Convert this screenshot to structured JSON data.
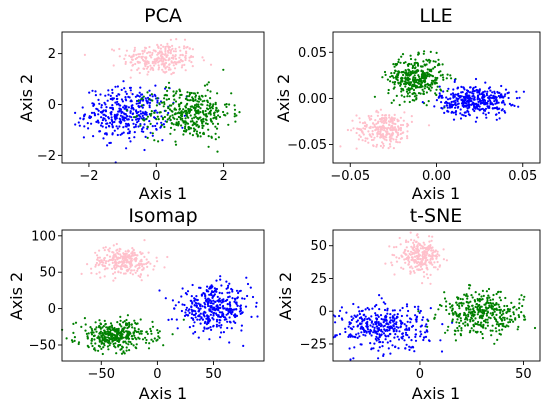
{
  "colors": {
    "class_a": "#0000ff",
    "class_b": "#008000",
    "class_c": "#ffc0cb"
  },
  "chart_data": [
    {
      "type": "scatter",
      "title": "PCA",
      "xlabel": "Axis 1",
      "ylabel": "Axis 2",
      "xlim": [
        -2.8,
        3.2
      ],
      "ylim": [
        -2.3,
        2.85
      ],
      "xticks": [
        -2,
        0,
        2
      ],
      "yticks": [
        -2,
        0,
        2
      ],
      "xtick_labels": [
        "−2",
        "0",
        "2"
      ],
      "ytick_labels": [
        "−2",
        "0",
        "2"
      ],
      "grid": false,
      "clusters": [
        {
          "color": "class_c",
          "center": [
            0.1,
            1.8
          ],
          "spread": [
            0.55,
            0.32
          ],
          "n": 260
        },
        {
          "color": "class_a",
          "center": [
            -0.9,
            -0.35
          ],
          "spread": [
            0.6,
            0.5
          ],
          "n": 380
        },
        {
          "color": "class_b",
          "center": [
            1.0,
            -0.35
          ],
          "spread": [
            0.6,
            0.5
          ],
          "n": 380
        }
      ]
    },
    {
      "type": "scatter",
      "title": "LLE",
      "xlabel": "Axis 1",
      "ylabel": "Axis 2",
      "xlim": [
        -0.06,
        0.06
      ],
      "ylim": [
        -0.07,
        0.072
      ],
      "xticks": [
        -0.05,
        0.0,
        0.05
      ],
      "yticks": [
        -0.05,
        0.0,
        0.05
      ],
      "xtick_labels": [
        "−0.05",
        "0.00",
        "0.05"
      ],
      "ytick_labels": [
        "−0.05",
        "0.00",
        "0.05"
      ],
      "grid": false,
      "clusters": [
        {
          "color": "class_c",
          "center": [
            -0.03,
            -0.033
          ],
          "spread": [
            0.008,
            0.009
          ],
          "n": 260
        },
        {
          "color": "class_b",
          "center": [
            -0.012,
            0.022
          ],
          "spread": [
            0.008,
            0.011
          ],
          "n": 380
        },
        {
          "color": "class_a",
          "center": [
            0.022,
            -0.002
          ],
          "spread": [
            0.01,
            0.008
          ],
          "n": 380
        }
      ]
    },
    {
      "type": "scatter",
      "title": "Isomap",
      "xlabel": "Axis 1",
      "ylabel": "Axis 2",
      "xlim": [
        -85,
        95
      ],
      "ylim": [
        -72,
        108
      ],
      "xticks": [
        -50,
        0,
        50
      ],
      "yticks": [
        -50,
        0,
        50,
        100
      ],
      "xtick_labels": [
        "−50",
        "0",
        "50"
      ],
      "ytick_labels": [
        "−50",
        "0",
        "50",
        "100"
      ],
      "grid": false,
      "clusters": [
        {
          "color": "class_c",
          "center": [
            -30,
            65
          ],
          "spread": [
            14,
            10
          ],
          "n": 260
        },
        {
          "color": "class_b",
          "center": [
            -38,
            -37
          ],
          "spread": [
            17,
            10
          ],
          "n": 380
        },
        {
          "color": "class_a",
          "center": [
            50,
            0
          ],
          "spread": [
            16,
            15
          ],
          "n": 380
        }
      ]
    },
    {
      "type": "scatter",
      "title": "t-SNE",
      "xlabel": "Axis 1",
      "ylabel": "Axis 2",
      "xlim": [
        -42,
        58
      ],
      "ylim": [
        -38,
        62
      ],
      "xticks": [
        0,
        50
      ],
      "yticks": [
        -25,
        0,
        25,
        50
      ],
      "xtick_labels": [
        "0",
        "50"
      ],
      "ytick_labels": [
        "−25",
        "0",
        "25",
        "50"
      ],
      "grid": false,
      "clusters": [
        {
          "color": "class_c",
          "center": [
            0,
            42
          ],
          "spread": [
            5,
            6
          ],
          "n": 260
        },
        {
          "color": "class_a",
          "center": [
            -18,
            -12
          ],
          "spread": [
            11,
            9
          ],
          "n": 380
        },
        {
          "color": "class_b",
          "center": [
            30,
            -2
          ],
          "spread": [
            10,
            8
          ],
          "n": 380
        }
      ]
    }
  ]
}
